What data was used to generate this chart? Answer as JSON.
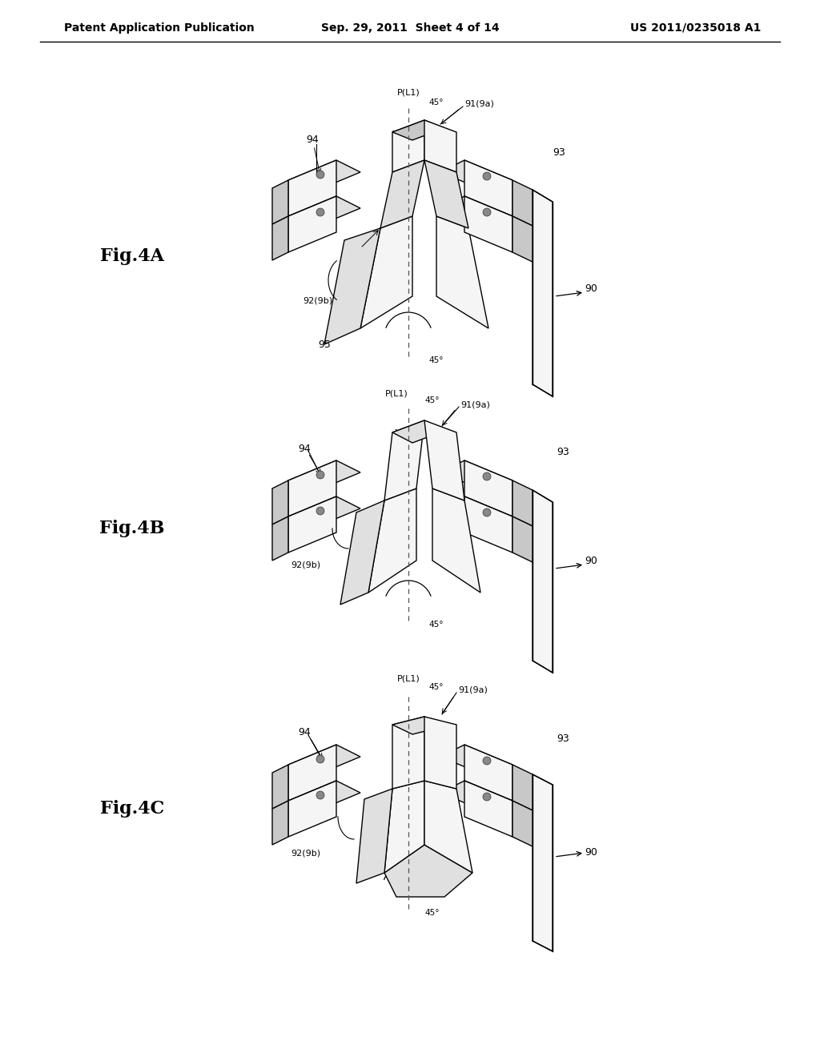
{
  "bg_color": "#ffffff",
  "header_left": "Patent Application Publication",
  "header_mid": "Sep. 29, 2011  Sheet 4 of 14",
  "header_right": "US 2011/0235018 A1",
  "line_color": "#000000",
  "face_light": "#f5f5f5",
  "face_mid": "#e0e0e0",
  "face_dark": "#c8c8c8",
  "hole_color": "#888888",
  "dash_color": "#555555",
  "text_color": "#000000"
}
